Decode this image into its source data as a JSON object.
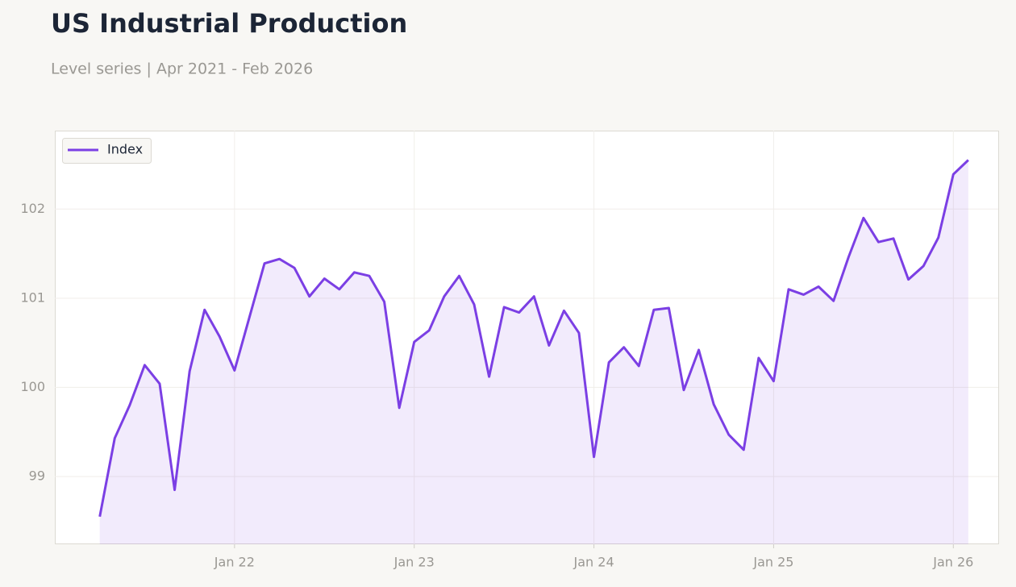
{
  "chart_data": {
    "type": "line",
    "title": "US Industrial Production",
    "subtitle": "Level series | Apr 2021 - Feb 2026",
    "x": [
      "2021-04",
      "2021-05",
      "2021-06",
      "2021-07",
      "2021-08",
      "2021-09",
      "2021-10",
      "2021-11",
      "2021-12",
      "2022-01",
      "2022-02",
      "2022-03",
      "2022-04",
      "2022-05",
      "2022-06",
      "2022-07",
      "2022-08",
      "2022-09",
      "2022-10",
      "2022-11",
      "2022-12",
      "2023-01",
      "2023-02",
      "2023-03",
      "2023-04",
      "2023-05",
      "2023-06",
      "2023-07",
      "2023-08",
      "2023-09",
      "2023-10",
      "2023-11",
      "2023-12",
      "2024-01",
      "2024-02",
      "2024-03",
      "2024-04",
      "2024-05",
      "2024-06",
      "2024-07",
      "2024-08",
      "2024-09",
      "2024-10",
      "2024-11",
      "2024-12",
      "2025-01",
      "2025-02",
      "2025-03",
      "2025-04",
      "2025-05",
      "2025-06",
      "2025-07",
      "2025-08",
      "2025-09",
      "2025-10",
      "2025-11",
      "2025-12",
      "2026-01",
      "2026-02"
    ],
    "series": [
      {
        "name": "Index",
        "color": "#7b3fe4",
        "values": [
          98.55,
          99.43,
          99.8,
          100.25,
          100.04,
          98.85,
          100.18,
          100.87,
          100.57,
          100.19,
          100.79,
          101.39,
          101.44,
          101.34,
          101.02,
          101.22,
          101.1,
          101.29,
          101.25,
          100.96,
          99.77,
          100.51,
          100.64,
          101.02,
          101.25,
          100.93,
          100.12,
          100.9,
          100.84,
          101.02,
          100.47,
          100.86,
          100.61,
          99.22,
          100.28,
          100.45,
          100.24,
          100.87,
          100.89,
          99.97,
          100.42,
          99.81,
          99.47,
          99.3,
          100.33,
          100.07,
          101.1,
          101.04,
          101.13,
          100.97,
          101.46,
          101.9,
          101.63,
          101.67,
          101.21,
          101.36,
          101.68,
          102.39,
          102.55
        ]
      }
    ],
    "xlim": [
      "2021-01",
      "2026-04"
    ],
    "xticks": [
      {
        "value": "2022-01",
        "label": "Jan 22"
      },
      {
        "value": "2023-01",
        "label": "Jan 23"
      },
      {
        "value": "2024-01",
        "label": "Jan 24"
      },
      {
        "value": "2025-01",
        "label": "Jan 25"
      },
      {
        "value": "2026-01",
        "label": "Jan 26"
      }
    ],
    "ylim": [
      98.24,
      102.88
    ],
    "yticks": [
      99,
      100,
      101,
      102
    ],
    "grid": true,
    "legend": "upper left",
    "area_fill": true
  }
}
